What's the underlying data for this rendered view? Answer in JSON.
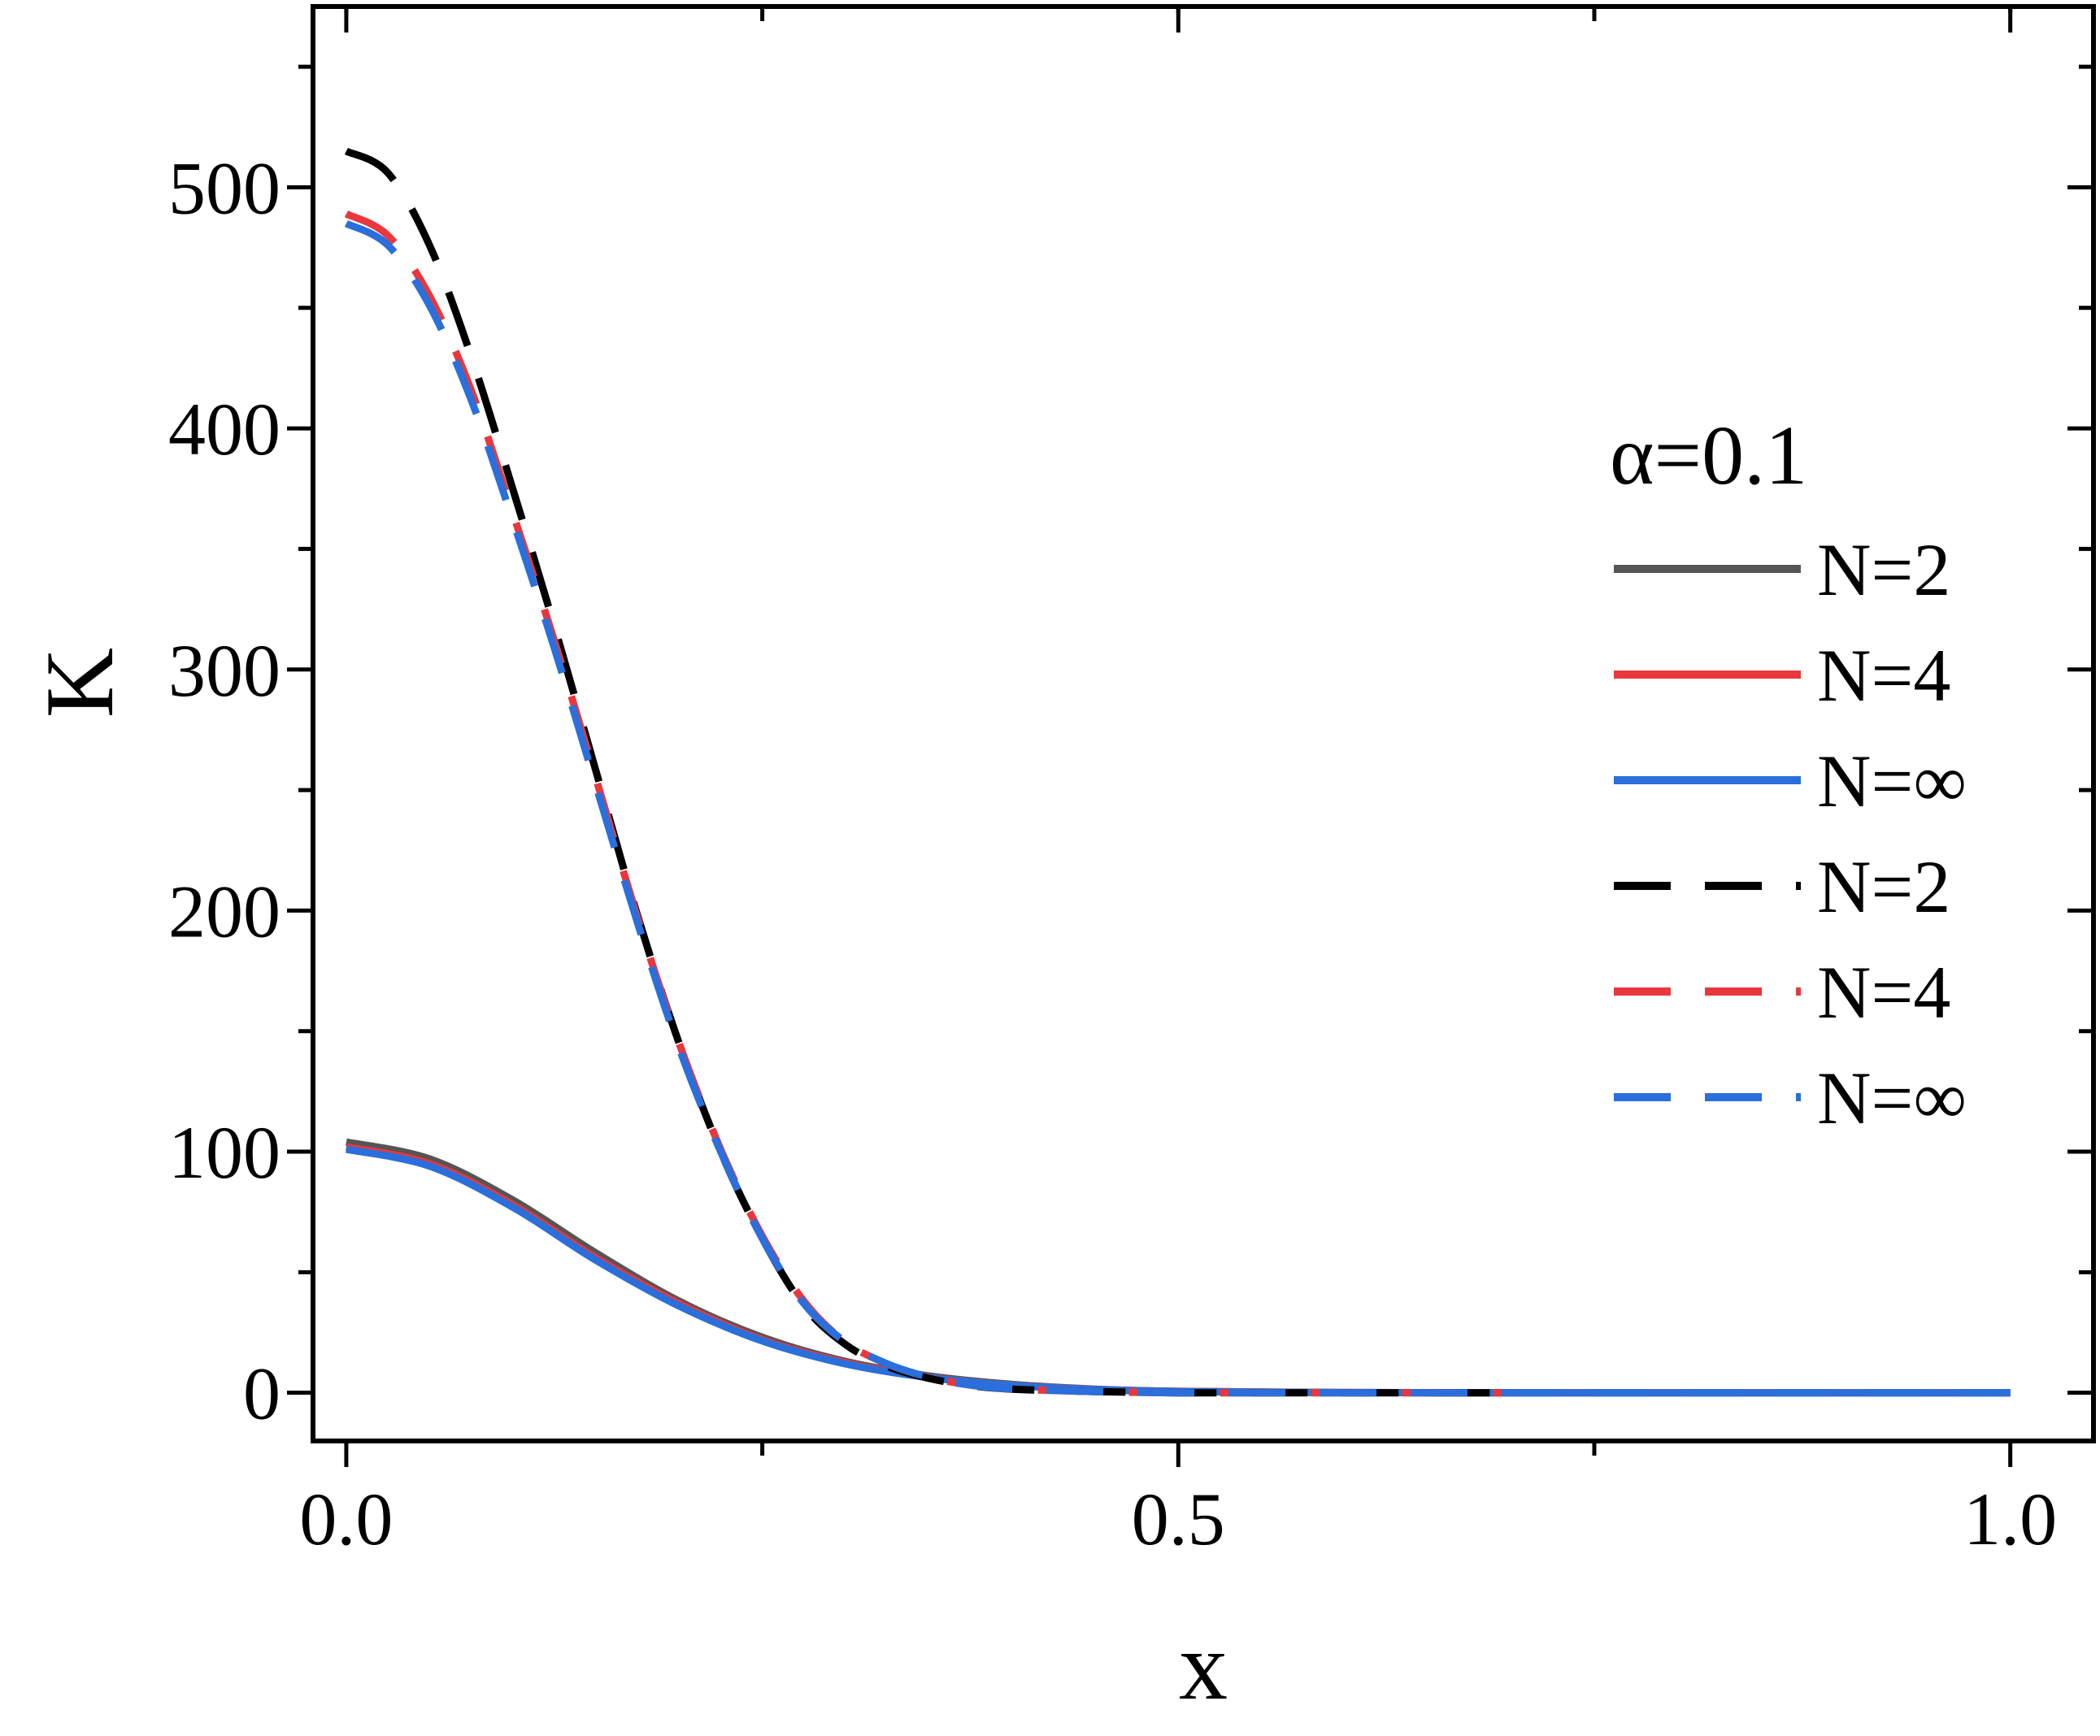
{
  "chart_data": {
    "type": "line",
    "title": "",
    "xlabel": "x",
    "ylabel": "K",
    "xlim": [
      -0.02,
      1.05
    ],
    "ylim": [
      -20,
      575
    ],
    "grid": false,
    "x_ticks": [
      {
        "value": 0.0,
        "label": "0.0"
      },
      {
        "value": 0.5,
        "label": "0.5"
      },
      {
        "value": 1.0,
        "label": "1.0"
      }
    ],
    "x_minor_ticks": [
      0.25,
      0.75
    ],
    "y_ticks": [
      {
        "value": 0,
        "label": "0"
      },
      {
        "value": 100,
        "label": "100"
      },
      {
        "value": 200,
        "label": "200"
      },
      {
        "value": 300,
        "label": "300"
      },
      {
        "value": 400,
        "label": "400"
      },
      {
        "value": 500,
        "label": "500"
      }
    ],
    "y_minor_ticks": [
      50,
      150,
      250,
      350,
      450,
      550
    ],
    "legend": {
      "title": "α=0.1",
      "position": "right",
      "entries": [
        {
          "label": "N=2",
          "color": "#555555",
          "style": "solid"
        },
        {
          "label": "N=4",
          "color": "#e8383d",
          "style": "solid"
        },
        {
          "label": "N=∞",
          "color": "#2a6fdb",
          "style": "solid"
        },
        {
          "label": "N=2",
          "color": "#000000",
          "style": "dashed"
        },
        {
          "label": "N=4",
          "color": "#e8383d",
          "style": "dashed"
        },
        {
          "label": "N=∞",
          "color": "#2a6fdb",
          "style": "dashed"
        }
      ]
    },
    "series": [
      {
        "color": "#555555",
        "style": "solid",
        "x": [
          0,
          0.05,
          0.1,
          0.15,
          0.2,
          0.25,
          0.3,
          0.35,
          0.4,
          0.45,
          0.5,
          0.6,
          0.7,
          0.8,
          0.9,
          1.0
        ],
        "y": [
          104,
          97,
          80,
          58,
          38,
          23,
          13,
          7,
          3.5,
          1.5,
          0.6,
          0.1,
          0,
          0,
          0,
          0
        ]
      },
      {
        "color": "#e8383d",
        "style": "solid",
        "x": [
          0,
          0.05,
          0.1,
          0.15,
          0.2,
          0.25,
          0.3,
          0.35,
          0.4,
          0.45,
          0.5,
          0.6,
          0.7,
          0.8,
          0.9,
          1.0
        ],
        "y": [
          102,
          95,
          78,
          56,
          37,
          22,
          12.5,
          6.5,
          3.2,
          1.4,
          0.6,
          0.1,
          0,
          0,
          0,
          0
        ]
      },
      {
        "color": "#2a6fdb",
        "style": "solid",
        "x": [
          0,
          0.05,
          0.1,
          0.15,
          0.2,
          0.25,
          0.3,
          0.35,
          0.4,
          0.45,
          0.5,
          0.6,
          0.7,
          0.8,
          0.9,
          1.0
        ],
        "y": [
          101,
          94,
          77,
          55,
          36,
          21.5,
          12,
          6.3,
          3.1,
          1.3,
          0.5,
          0.1,
          0,
          0,
          0,
          0
        ]
      },
      {
        "color": "#000000",
        "style": "dashed",
        "x": [
          0,
          0.025,
          0.05,
          0.075,
          0.1,
          0.125,
          0.15,
          0.175,
          0.2,
          0.225,
          0.25,
          0.275,
          0.3,
          0.325,
          0.35,
          0.375,
          0.4,
          0.45,
          0.5,
          0.55,
          0.6,
          0.65,
          0.7
        ],
        "y": [
          515,
          506,
          476,
          430,
          375,
          318,
          258,
          198,
          145,
          100,
          64,
          36,
          20,
          11,
          6,
          3,
          1.5,
          0.5,
          0,
          0,
          0,
          0,
          0
        ]
      },
      {
        "color": "#e8383d",
        "style": "dashed",
        "x": [
          0,
          0.025,
          0.05,
          0.075,
          0.1,
          0.125,
          0.15,
          0.175,
          0.2,
          0.225,
          0.25,
          0.275,
          0.3,
          0.325,
          0.35,
          0.375,
          0.4,
          0.45,
          0.5,
          0.55,
          0.6,
          0.65,
          0.7
        ],
        "y": [
          489,
          480,
          455,
          416,
          365,
          312,
          255,
          197,
          145,
          101,
          65,
          38,
          21,
          12,
          6.5,
          3.2,
          1.6,
          0.5,
          0,
          0,
          0,
          0,
          0
        ]
      },
      {
        "color": "#2a6fdb",
        "style": "dashed",
        "x": [
          0,
          0.025,
          0.05,
          0.075,
          0.1,
          0.125,
          0.15,
          0.175,
          0.2,
          0.225,
          0.25,
          0.275,
          0.3,
          0.325,
          0.35,
          0.375,
          0.4,
          0.45,
          0.5,
          0.55,
          0.6,
          0.65,
          0.7,
          0.8,
          0.9,
          1.0
        ],
        "y": [
          485,
          476,
          451,
          412,
          362,
          309,
          252,
          195,
          143,
          100,
          64,
          37,
          21,
          12,
          6.5,
          3.2,
          1.6,
          0.5,
          0,
          0,
          0,
          0,
          0,
          0,
          0,
          0
        ]
      }
    ]
  }
}
